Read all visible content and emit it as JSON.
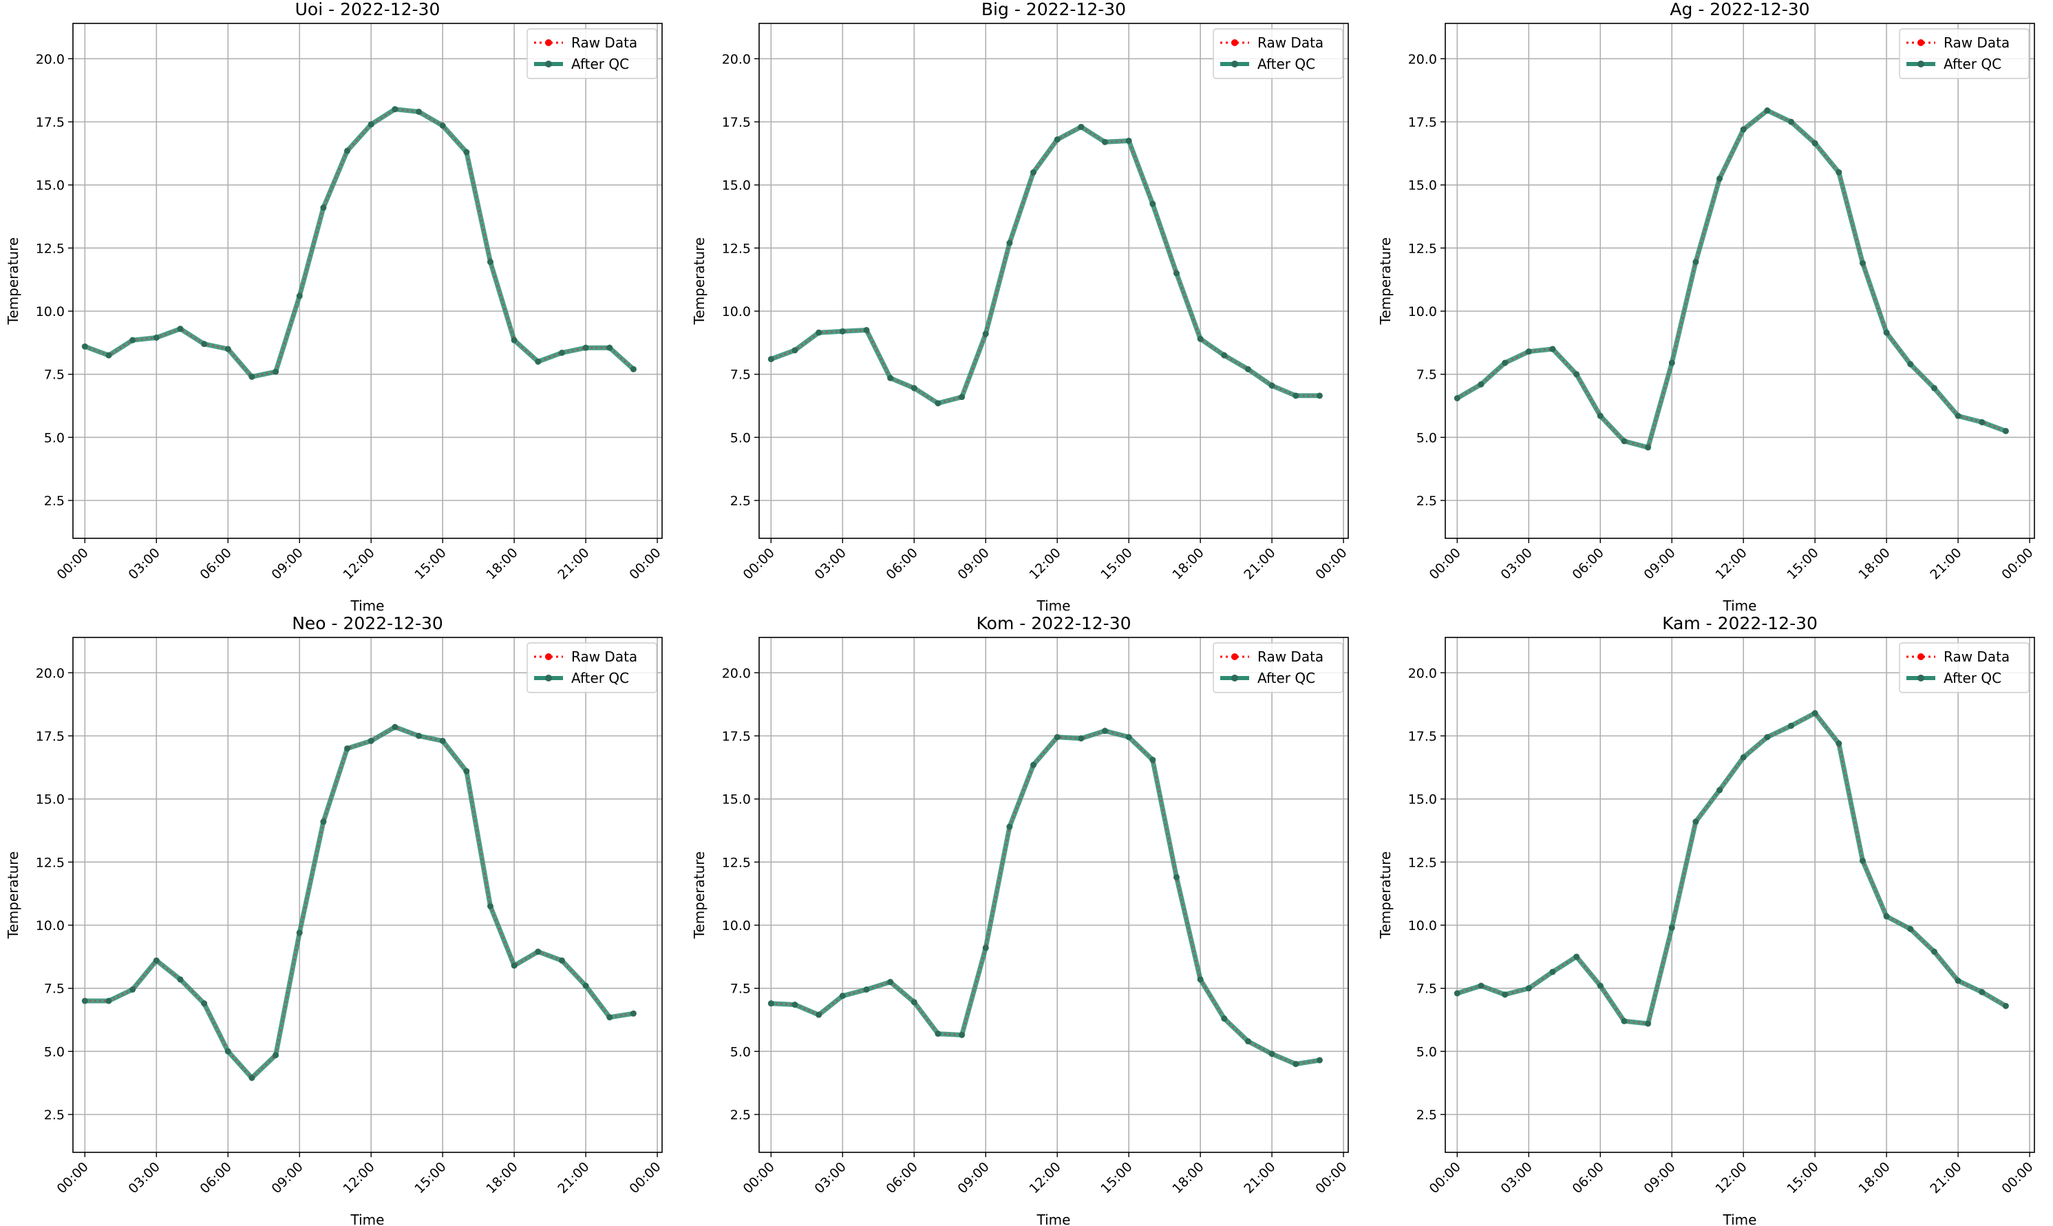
{
  "figure": {
    "legend": {
      "raw_label": "Raw Data",
      "qc_label": "After QC",
      "placement": "upper-right"
    },
    "colors": {
      "raw": "#ff0000",
      "qc": "#2e8b72",
      "qc_marker": "#2d6b58",
      "grid": "#b0b0b0"
    }
  },
  "chart_data": [
    {
      "type": "line",
      "title": "Uoi - 2022-12-30",
      "xlabel": "Time",
      "ylabel": "Temperature",
      "xticks": [
        "00:00",
        "03:00",
        "06:00",
        "09:00",
        "12:00",
        "15:00",
        "18:00",
        "21:00",
        "00:00"
      ],
      "yticks": [
        "2.5",
        "5.0",
        "7.5",
        "10.0",
        "12.5",
        "15.0",
        "17.5",
        "20.0"
      ],
      "ylim": [
        1.0,
        21.4
      ],
      "xlim_hours": [
        -0.5,
        24.2
      ],
      "grid": true,
      "x_hours": [
        0,
        1,
        2,
        3,
        4,
        5,
        6,
        7,
        8,
        9,
        10,
        11,
        12,
        13,
        14,
        15,
        16,
        17,
        18,
        19,
        20,
        21,
        22,
        23
      ],
      "series": [
        {
          "name": "Raw Data",
          "values": [
            8.6,
            8.25,
            8.85,
            8.95,
            9.3,
            8.7,
            8.5,
            7.4,
            7.6,
            10.6,
            14.1,
            16.35,
            17.4,
            18.0,
            17.9,
            17.35,
            16.3,
            11.95,
            8.85,
            8.0,
            8.35,
            8.55,
            8.55,
            7.7
          ]
        },
        {
          "name": "After QC",
          "values": [
            8.6,
            8.25,
            8.85,
            8.95,
            9.3,
            8.7,
            8.5,
            7.4,
            7.6,
            10.6,
            14.1,
            16.35,
            17.4,
            18.0,
            17.9,
            17.35,
            16.3,
            11.95,
            8.85,
            8.0,
            8.35,
            8.55,
            8.55,
            7.7
          ]
        }
      ]
    },
    {
      "type": "line",
      "title": "Big - 2022-12-30",
      "xlabel": "Time",
      "ylabel": "Temperature",
      "xticks": [
        "00:00",
        "03:00",
        "06:00",
        "09:00",
        "12:00",
        "15:00",
        "18:00",
        "21:00",
        "00:00"
      ],
      "yticks": [
        "2.5",
        "5.0",
        "7.5",
        "10.0",
        "12.5",
        "15.0",
        "17.5",
        "20.0"
      ],
      "ylim": [
        1.0,
        21.4
      ],
      "xlim_hours": [
        -0.5,
        24.2
      ],
      "grid": true,
      "x_hours": [
        0,
        1,
        2,
        3,
        4,
        5,
        6,
        7,
        8,
        9,
        10,
        11,
        12,
        13,
        14,
        15,
        16,
        17,
        18,
        19,
        20,
        21,
        22,
        23
      ],
      "series": [
        {
          "name": "Raw Data",
          "values": [
            8.1,
            8.45,
            9.15,
            9.2,
            9.25,
            7.35,
            6.95,
            6.35,
            6.6,
            9.1,
            12.7,
            15.5,
            16.8,
            17.3,
            16.7,
            16.75,
            14.25,
            11.5,
            8.9,
            8.25,
            7.7,
            7.05,
            6.65,
            6.65
          ]
        },
        {
          "name": "After QC",
          "values": [
            8.1,
            8.45,
            9.15,
            9.2,
            9.25,
            7.35,
            6.95,
            6.35,
            6.6,
            9.1,
            12.7,
            15.5,
            16.8,
            17.3,
            16.7,
            16.75,
            14.25,
            11.5,
            8.9,
            8.25,
            7.7,
            7.05,
            6.65,
            6.65
          ]
        }
      ]
    },
    {
      "type": "line",
      "title": "Ag - 2022-12-30",
      "xlabel": "Time",
      "ylabel": "Temperature",
      "xticks": [
        "00:00",
        "03:00",
        "06:00",
        "09:00",
        "12:00",
        "15:00",
        "18:00",
        "21:00",
        "00:00"
      ],
      "yticks": [
        "2.5",
        "5.0",
        "7.5",
        "10.0",
        "12.5",
        "15.0",
        "17.5",
        "20.0"
      ],
      "ylim": [
        1.0,
        21.4
      ],
      "xlim_hours": [
        -0.5,
        24.2
      ],
      "grid": true,
      "x_hours": [
        0,
        1,
        2,
        3,
        4,
        5,
        6,
        7,
        8,
        9,
        10,
        11,
        12,
        13,
        14,
        15,
        16,
        17,
        18,
        19,
        20,
        21,
        22,
        23
      ],
      "series": [
        {
          "name": "Raw Data",
          "values": [
            6.55,
            7.1,
            7.95,
            8.4,
            8.5,
            7.5,
            5.85,
            4.85,
            4.6,
            7.95,
            11.95,
            15.25,
            17.2,
            17.95,
            17.5,
            16.65,
            15.5,
            11.9,
            9.15,
            7.9,
            6.95,
            5.85,
            5.6,
            5.25
          ]
        },
        {
          "name": "After QC",
          "values": [
            6.55,
            7.1,
            7.95,
            8.4,
            8.5,
            7.5,
            5.85,
            4.85,
            4.6,
            7.95,
            11.95,
            15.25,
            17.2,
            17.95,
            17.5,
            16.65,
            15.5,
            11.9,
            9.15,
            7.9,
            6.95,
            5.85,
            5.6,
            5.25
          ]
        }
      ]
    },
    {
      "type": "line",
      "title": "Neo - 2022-12-30",
      "xlabel": "Time",
      "ylabel": "Temperature",
      "xticks": [
        "00:00",
        "03:00",
        "06:00",
        "09:00",
        "12:00",
        "15:00",
        "18:00",
        "21:00",
        "00:00"
      ],
      "yticks": [
        "2.5",
        "5.0",
        "7.5",
        "10.0",
        "12.5",
        "15.0",
        "17.5",
        "20.0"
      ],
      "ylim": [
        1.0,
        21.4
      ],
      "xlim_hours": [
        -0.5,
        24.2
      ],
      "grid": true,
      "x_hours": [
        0,
        1,
        2,
        3,
        4,
        5,
        6,
        7,
        8,
        9,
        10,
        11,
        12,
        13,
        14,
        15,
        16,
        17,
        18,
        19,
        20,
        21,
        22,
        23
      ],
      "series": [
        {
          "name": "Raw Data",
          "values": [
            7.0,
            7.0,
            7.45,
            8.6,
            7.85,
            6.9,
            5.0,
            3.95,
            4.85,
            9.7,
            14.1,
            17.0,
            17.3,
            17.85,
            17.5,
            17.3,
            16.1,
            10.75,
            8.4,
            8.95,
            8.6,
            7.6,
            6.35,
            6.5
          ]
        },
        {
          "name": "After QC",
          "values": [
            7.0,
            7.0,
            7.45,
            8.6,
            7.85,
            6.9,
            5.0,
            3.95,
            4.85,
            9.7,
            14.1,
            17.0,
            17.3,
            17.85,
            17.5,
            17.3,
            16.1,
            10.75,
            8.4,
            8.95,
            8.6,
            7.6,
            6.35,
            6.5
          ]
        }
      ]
    },
    {
      "type": "line",
      "title": "Kom - 2022-12-30",
      "xlabel": "Time",
      "ylabel": "Temperature",
      "xticks": [
        "00:00",
        "03:00",
        "06:00",
        "09:00",
        "12:00",
        "15:00",
        "18:00",
        "21:00",
        "00:00"
      ],
      "yticks": [
        "2.5",
        "5.0",
        "7.5",
        "10.0",
        "12.5",
        "15.0",
        "17.5",
        "20.0"
      ],
      "ylim": [
        1.0,
        21.4
      ],
      "xlim_hours": [
        -0.5,
        24.2
      ],
      "grid": true,
      "x_hours": [
        0,
        1,
        2,
        3,
        4,
        5,
        6,
        7,
        8,
        9,
        10,
        11,
        12,
        13,
        14,
        15,
        16,
        17,
        18,
        19,
        20,
        21,
        22,
        23
      ],
      "series": [
        {
          "name": "Raw Data",
          "values": [
            6.9,
            6.85,
            6.45,
            7.2,
            7.45,
            7.75,
            6.95,
            5.7,
            5.65,
            9.1,
            13.9,
            16.35,
            17.45,
            17.4,
            17.7,
            17.45,
            16.55,
            11.9,
            7.85,
            6.3,
            5.4,
            4.9,
            4.5,
            4.65
          ]
        },
        {
          "name": "After QC",
          "values": [
            6.9,
            6.85,
            6.45,
            7.2,
            7.45,
            7.75,
            6.95,
            5.7,
            5.65,
            9.1,
            13.9,
            16.35,
            17.45,
            17.4,
            17.7,
            17.45,
            16.55,
            11.9,
            7.85,
            6.3,
            5.4,
            4.9,
            4.5,
            4.65
          ]
        }
      ]
    },
    {
      "type": "line",
      "title": "Kam - 2022-12-30",
      "xlabel": "Time",
      "ylabel": "Temperature",
      "xticks": [
        "00:00",
        "03:00",
        "06:00",
        "09:00",
        "12:00",
        "15:00",
        "18:00",
        "21:00",
        "00:00"
      ],
      "yticks": [
        "2.5",
        "5.0",
        "7.5",
        "10.0",
        "12.5",
        "15.0",
        "17.5",
        "20.0"
      ],
      "ylim": [
        1.0,
        21.4
      ],
      "xlim_hours": [
        -0.5,
        24.2
      ],
      "grid": true,
      "x_hours": [
        0,
        1,
        2,
        3,
        4,
        5,
        6,
        7,
        8,
        9,
        10,
        11,
        12,
        13,
        14,
        15,
        16,
        17,
        18,
        19,
        20,
        21,
        22,
        23
      ],
      "series": [
        {
          "name": "Raw Data",
          "values": [
            7.3,
            7.6,
            7.25,
            7.5,
            8.15,
            8.75,
            7.6,
            6.2,
            6.1,
            9.9,
            14.1,
            15.35,
            16.65,
            17.45,
            17.9,
            18.4,
            17.2,
            12.55,
            10.35,
            9.85,
            8.95,
            7.8,
            7.35,
            6.8
          ]
        },
        {
          "name": "After QC",
          "values": [
            7.3,
            7.6,
            7.25,
            7.5,
            8.15,
            8.75,
            7.6,
            6.2,
            6.1,
            9.9,
            14.1,
            15.35,
            16.65,
            17.45,
            17.9,
            18.4,
            17.2,
            12.55,
            10.35,
            9.85,
            8.95,
            7.8,
            7.35,
            6.8
          ]
        }
      ]
    }
  ]
}
